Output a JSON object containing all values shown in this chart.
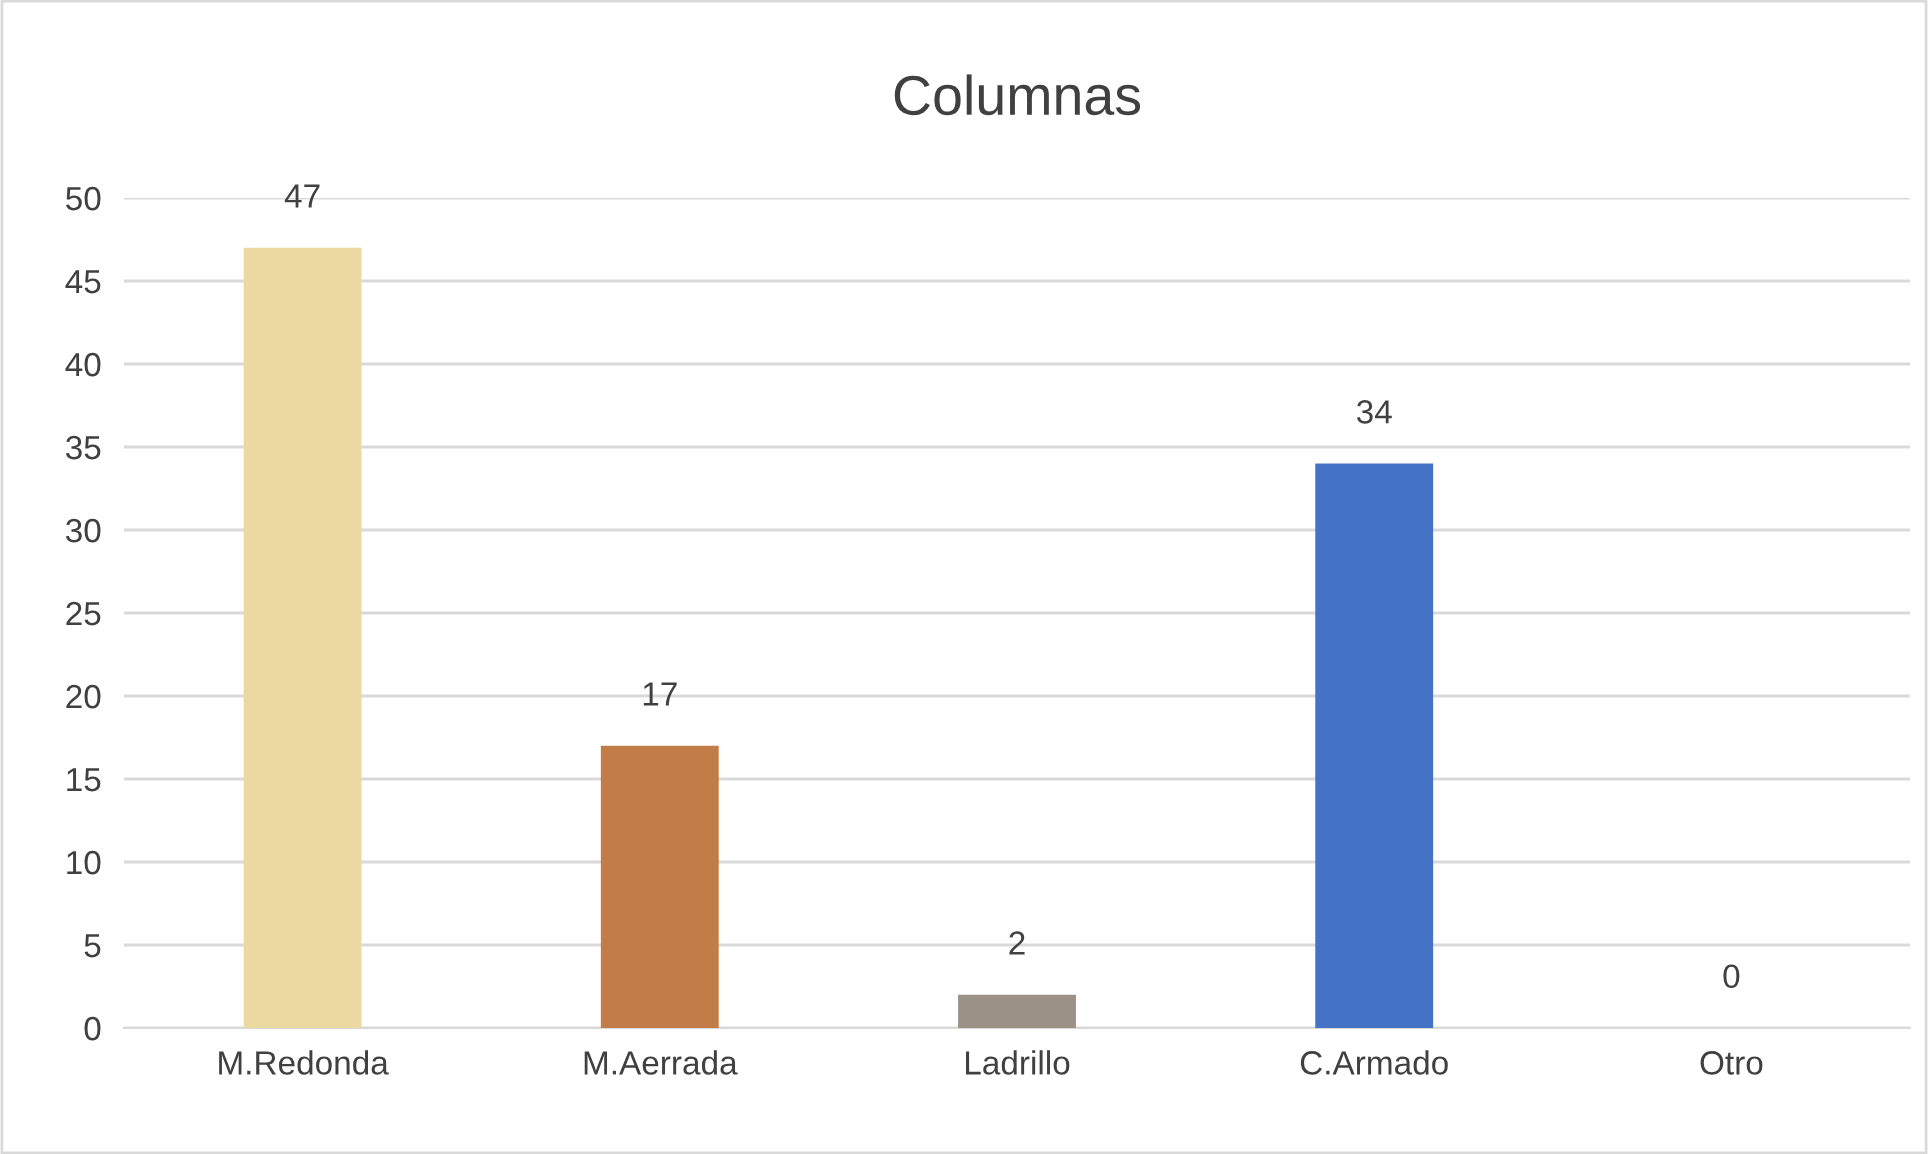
{
  "chart_data": {
    "type": "bar",
    "title": "Columnas",
    "categories": [
      "M.Redonda",
      "M.Aerrada",
      "Ladrillo",
      "C.Armado",
      "Otro"
    ],
    "values": [
      47,
      17,
      2,
      34,
      0
    ],
    "colors": [
      "#ecd9a2",
      "#c27c48",
      "#9c9187",
      "#4472c4",
      "#a5a5a5"
    ],
    "ylim": [
      0,
      50
    ],
    "yticks": [
      0,
      5,
      10,
      15,
      20,
      25,
      30,
      35,
      40,
      45,
      50
    ],
    "grid": "y",
    "data_labels": true
  }
}
